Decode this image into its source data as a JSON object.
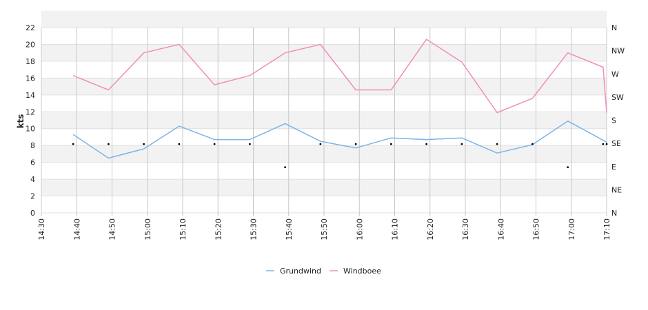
{
  "chart_data": {
    "type": "line",
    "ylabel": "kts",
    "ylim": [
      0,
      22
    ],
    "yticks": [
      "0",
      "2",
      "4",
      "6",
      "8",
      "10",
      "12",
      "14",
      "16",
      "18",
      "20",
      "22"
    ],
    "x_ticks": [
      "14:30",
      "14:40",
      "14:50",
      "15:00",
      "15:10",
      "15:20",
      "15:30",
      "15:40",
      "15:50",
      "16:00",
      "16:10",
      "16:20",
      "16:30",
      "16:40",
      "16:50",
      "17:00",
      "17:10"
    ],
    "y2_ticks": [
      "N",
      "NE",
      "E",
      "SE",
      "S",
      "SW",
      "W",
      "NW",
      "N"
    ],
    "grid": true,
    "legend_position": "bottom",
    "series": [
      {
        "name": "Grundwind",
        "color": "#7ab4ea",
        "x": [
          "14:39",
          "14:49",
          "14:59",
          "15:09",
          "15:19",
          "15:29",
          "15:39",
          "15:49",
          "15:59",
          "16:09",
          "16:19",
          "16:29",
          "16:39",
          "16:49",
          "16:59",
          "17:10"
        ],
        "values": [
          9.3,
          6.5,
          7.6,
          10.3,
          8.7,
          8.7,
          10.6,
          8.5,
          7.7,
          8.9,
          8.7,
          8.9,
          7.1,
          8.1,
          10.9,
          8.4
        ]
      },
      {
        "name": "Windboee",
        "color": "#f28cbd",
        "x": [
          "14:39",
          "14:49",
          "14:59",
          "15:09",
          "15:19",
          "15:29",
          "15:39",
          "15:49",
          "15:59",
          "16:09",
          "16:19",
          "16:29",
          "16:39",
          "16:49",
          "16:59",
          "17:09",
          "17:10"
        ],
        "values": [
          16.3,
          14.6,
          19.0,
          20.0,
          15.2,
          16.3,
          19.0,
          20.0,
          14.6,
          14.6,
          20.6,
          17.9,
          11.9,
          13.6,
          19.0,
          17.3,
          11.9
        ]
      }
    ],
    "direction": {
      "x": [
        "14:39",
        "14:49",
        "14:59",
        "15:09",
        "15:19",
        "15:29",
        "15:39",
        "15:49",
        "15:59",
        "16:09",
        "16:19",
        "16:29",
        "16:39",
        "16:49",
        "16:59",
        "17:09",
        "17:10"
      ],
      "values": [
        "SE",
        "SE",
        "SE",
        "SE",
        "SE",
        "SE",
        "E",
        "SE",
        "SE",
        "SE",
        "SE",
        "SE",
        "SE",
        "SE",
        "E",
        "SE",
        "SE"
      ]
    }
  }
}
